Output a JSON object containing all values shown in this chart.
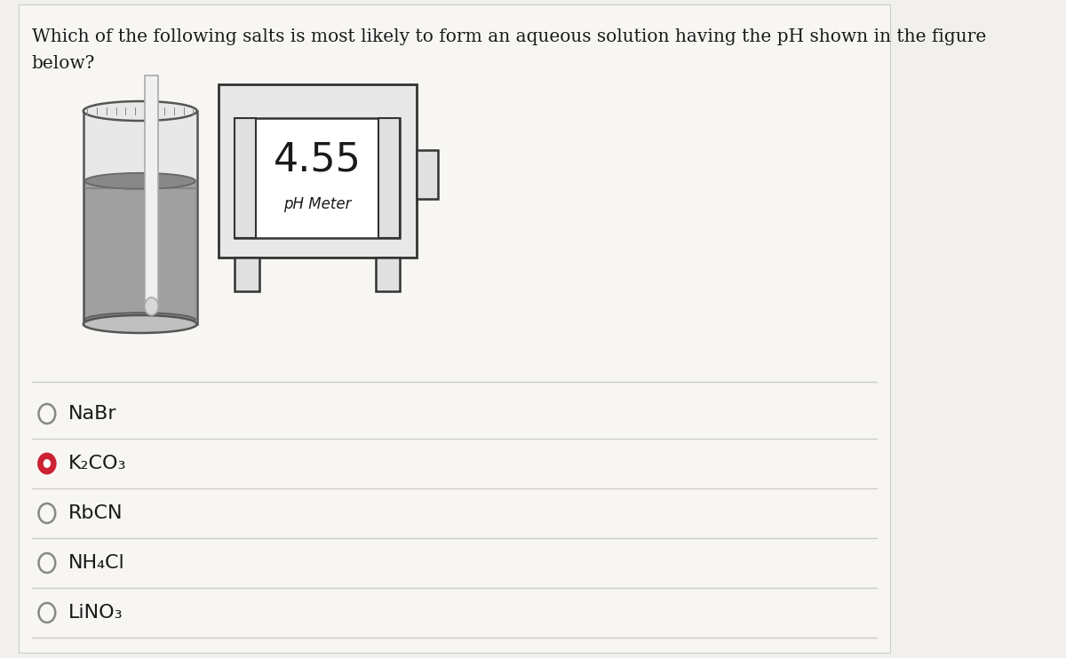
{
  "title_line1": "Which of the following salts is most likely to form an aqueous solution having the pH shown in the figure",
  "title_line2": "below?",
  "ph_value": "4.55",
  "ph_label": "pH Meter",
  "options": [
    {
      "label": "NaBr",
      "selected": false
    },
    {
      "label": "K₂CO₃",
      "selected": true
    },
    {
      "label": "RbCN",
      "selected": false
    },
    {
      "label": "NH₄Cl",
      "selected": false
    },
    {
      "label": "LiNO₃",
      "selected": false
    }
  ],
  "bg_color": "#f2f0ed",
  "card_color": "#f7f5f2",
  "text_color": "#1a1a1a",
  "selected_color": "#cc2233",
  "line_color": "#cccccc",
  "meter_border": "#333333"
}
